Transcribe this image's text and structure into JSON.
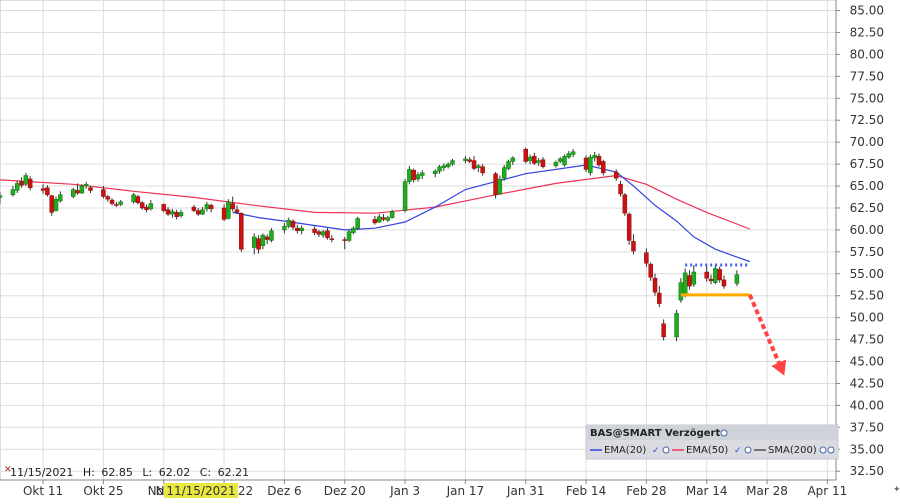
{
  "chart_data": {
    "type": "candlestick",
    "y_ticks": [
      "85.00",
      "82.50",
      "80.00",
      "77.50",
      "75.00",
      "72.50",
      "70.00",
      "67.50",
      "65.00",
      "62.50",
      "60.00",
      "57.50",
      "55.00",
      "52.50",
      "50.00",
      "47.50",
      "45.00",
      "42.50",
      "40.00",
      "37.50",
      "35.00",
      "32.50"
    ],
    "ylim": [
      31.5,
      86.2
    ],
    "x_start": "2021-10-01",
    "x_end": "2022-04-13",
    "x_ticks": [
      {
        "date": "2021-10-11",
        "label": "Okt 11"
      },
      {
        "date": "2021-10-25",
        "label": "Okt 25"
      },
      {
        "date": "2021-11-08",
        "label": "No"
      },
      {
        "date": "2021-11-22",
        "label": "22"
      },
      {
        "date": "2021-12-06",
        "label": "Dez 6"
      },
      {
        "date": "2021-12-20",
        "label": "Dez 20"
      },
      {
        "date": "2022-01-03",
        "label": "Jan 3"
      },
      {
        "date": "2022-01-17",
        "label": "Jan 17"
      },
      {
        "date": "2022-01-31",
        "label": "Jan 31"
      },
      {
        "date": "2022-02-14",
        "label": "Feb 14"
      },
      {
        "date": "2022-02-28",
        "label": "Feb 28"
      },
      {
        "date": "2022-03-14",
        "label": "Mar 14"
      },
      {
        "date": "2022-03-28",
        "label": "Mar 28"
      },
      {
        "date": "2022-04-11",
        "label": "Apr 11"
      }
    ],
    "highlight_date_label": "11/15/2021",
    "info_line": {
      "date": "11/15/2021",
      "high_label": "H:",
      "high": "62.85",
      "low_label": "L:",
      "low": "62.02",
      "close_label": "C:",
      "close": "62.21"
    },
    "colors": {
      "up": "#22aa22",
      "down": "#cc1111",
      "wick": "#333333",
      "ema20": "#3344dd",
      "ema50": "#ee3355",
      "sma200": "#555555",
      "support": "#ffaa00",
      "resistance": "#4466ee",
      "arrow": "#ff4444",
      "highlight": "#e8e840"
    },
    "candles": [
      {
        "d": "2021-10-01",
        "o": 63.7,
        "h": 64.3,
        "l": 63.0,
        "c": 63.9
      },
      {
        "d": "2021-10-04",
        "o": 64.0,
        "h": 65.0,
        "l": 63.8,
        "c": 64.6
      },
      {
        "d": "2021-10-05",
        "o": 64.5,
        "h": 65.6,
        "l": 64.2,
        "c": 65.3
      },
      {
        "d": "2021-10-06",
        "o": 65.5,
        "h": 66.0,
        "l": 64.8,
        "c": 65.1
      },
      {
        "d": "2021-10-07",
        "o": 65.2,
        "h": 66.5,
        "l": 65.0,
        "c": 66.2
      },
      {
        "d": "2021-10-08",
        "o": 65.8,
        "h": 66.1,
        "l": 64.5,
        "c": 64.8
      },
      {
        "d": "2021-10-11",
        "o": 64.7,
        "h": 65.2,
        "l": 64.1,
        "c": 64.5
      },
      {
        "d": "2021-10-12",
        "o": 64.8,
        "h": 65.1,
        "l": 63.8,
        "c": 64.0
      },
      {
        "d": "2021-10-13",
        "o": 63.9,
        "h": 64.0,
        "l": 61.6,
        "c": 62.0
      },
      {
        "d": "2021-10-14",
        "o": 62.2,
        "h": 63.8,
        "l": 62.1,
        "c": 63.5
      },
      {
        "d": "2021-10-15",
        "o": 63.3,
        "h": 64.4,
        "l": 63.1,
        "c": 64.0
      },
      {
        "d": "2021-10-18",
        "o": 63.8,
        "h": 64.8,
        "l": 63.6,
        "c": 64.6
      },
      {
        "d": "2021-10-19",
        "o": 64.5,
        "h": 65.3,
        "l": 64.0,
        "c": 64.2
      },
      {
        "d": "2021-10-20",
        "o": 64.2,
        "h": 65.2,
        "l": 64.1,
        "c": 65.0
      },
      {
        "d": "2021-10-21",
        "o": 65.0,
        "h": 65.5,
        "l": 64.7,
        "c": 65.2
      },
      {
        "d": "2021-10-22",
        "o": 64.8,
        "h": 65.0,
        "l": 64.2,
        "c": 64.5
      },
      {
        "d": "2021-10-25",
        "o": 64.6,
        "h": 65.0,
        "l": 63.6,
        "c": 63.8
      },
      {
        "d": "2021-10-26",
        "o": 63.8,
        "h": 64.0,
        "l": 63.2,
        "c": 63.5
      },
      {
        "d": "2021-10-27",
        "o": 63.4,
        "h": 63.6,
        "l": 62.8,
        "c": 63.0
      },
      {
        "d": "2021-10-28",
        "o": 62.9,
        "h": 63.2,
        "l": 62.6,
        "c": 62.8
      },
      {
        "d": "2021-10-29",
        "o": 62.9,
        "h": 63.4,
        "l": 62.7,
        "c": 63.2
      },
      {
        "d": "2021-11-01",
        "o": 63.2,
        "h": 64.2,
        "l": 63.0,
        "c": 64.0
      },
      {
        "d": "2021-11-02",
        "o": 63.8,
        "h": 64.0,
        "l": 62.9,
        "c": 63.1
      },
      {
        "d": "2021-11-03",
        "o": 63.1,
        "h": 63.3,
        "l": 62.3,
        "c": 62.5
      },
      {
        "d": "2021-11-04",
        "o": 62.6,
        "h": 62.9,
        "l": 62.0,
        "c": 62.3
      },
      {
        "d": "2021-11-05",
        "o": 62.4,
        "h": 63.4,
        "l": 62.2,
        "c": 63.0
      },
      {
        "d": "2021-11-08",
        "o": 62.9,
        "h": 63.0,
        "l": 62.0,
        "c": 62.2
      },
      {
        "d": "2021-11-09",
        "o": 62.3,
        "h": 62.6,
        "l": 61.6,
        "c": 61.8
      },
      {
        "d": "2021-11-10",
        "o": 61.8,
        "h": 62.4,
        "l": 61.4,
        "c": 62.1
      },
      {
        "d": "2021-11-11",
        "o": 62.0,
        "h": 62.3,
        "l": 61.2,
        "c": 61.5
      },
      {
        "d": "2021-11-12",
        "o": 61.6,
        "h": 62.3,
        "l": 61.4,
        "c": 62.0
      },
      {
        "d": "2021-11-15",
        "o": 62.6,
        "h": 62.85,
        "l": 62.02,
        "c": 62.21
      },
      {
        "d": "2021-11-16",
        "o": 62.2,
        "h": 62.5,
        "l": 61.6,
        "c": 61.8
      },
      {
        "d": "2021-11-17",
        "o": 61.8,
        "h": 62.6,
        "l": 61.7,
        "c": 62.3
      },
      {
        "d": "2021-11-18",
        "o": 62.4,
        "h": 63.2,
        "l": 62.1,
        "c": 62.9
      },
      {
        "d": "2021-11-19",
        "o": 62.8,
        "h": 63.0,
        "l": 62.0,
        "c": 62.4
      },
      {
        "d": "2021-11-22",
        "o": 62.5,
        "h": 62.9,
        "l": 61.0,
        "c": 61.2
      },
      {
        "d": "2021-11-23",
        "o": 61.3,
        "h": 63.5,
        "l": 61.2,
        "c": 63.2
      },
      {
        "d": "2021-11-24",
        "o": 63.0,
        "h": 63.8,
        "l": 62.1,
        "c": 62.4
      },
      {
        "d": "2021-11-25",
        "o": 62.3,
        "h": 62.8,
        "l": 61.8,
        "c": 62.0
      },
      {
        "d": "2021-11-26",
        "o": 61.9,
        "h": 62.0,
        "l": 57.5,
        "c": 57.8
      },
      {
        "d": "2021-11-29",
        "o": 58.0,
        "h": 59.6,
        "l": 57.2,
        "c": 59.2
      },
      {
        "d": "2021-11-30",
        "o": 59.0,
        "h": 59.4,
        "l": 57.3,
        "c": 57.8
      },
      {
        "d": "2021-12-01",
        "o": 58.2,
        "h": 59.6,
        "l": 57.8,
        "c": 59.4
      },
      {
        "d": "2021-12-02",
        "o": 59.2,
        "h": 59.5,
        "l": 58.4,
        "c": 58.9
      },
      {
        "d": "2021-12-03",
        "o": 58.8,
        "h": 60.2,
        "l": 58.6,
        "c": 59.9
      },
      {
        "d": "2021-12-06",
        "o": 60.0,
        "h": 60.8,
        "l": 59.6,
        "c": 60.4
      },
      {
        "d": "2021-12-07",
        "o": 60.4,
        "h": 61.4,
        "l": 60.2,
        "c": 61.1
      },
      {
        "d": "2021-12-08",
        "o": 61.0,
        "h": 61.2,
        "l": 60.0,
        "c": 60.3
      },
      {
        "d": "2021-12-09",
        "o": 60.2,
        "h": 60.6,
        "l": 59.6,
        "c": 59.9
      },
      {
        "d": "2021-12-10",
        "o": 59.9,
        "h": 60.5,
        "l": 59.5,
        "c": 60.2
      },
      {
        "d": "2021-12-13",
        "o": 60.1,
        "h": 60.4,
        "l": 59.4,
        "c": 59.7
      },
      {
        "d": "2021-12-14",
        "o": 59.8,
        "h": 60.0,
        "l": 59.2,
        "c": 59.5
      },
      {
        "d": "2021-12-15",
        "o": 59.4,
        "h": 60.0,
        "l": 59.1,
        "c": 59.8
      },
      {
        "d": "2021-12-16",
        "o": 59.9,
        "h": 60.2,
        "l": 58.9,
        "c": 59.1
      },
      {
        "d": "2021-12-17",
        "o": 59.0,
        "h": 59.4,
        "l": 58.6,
        "c": 58.9
      },
      {
        "d": "2021-12-20",
        "o": 58.9,
        "h": 59.2,
        "l": 57.8,
        "c": 58.8
      },
      {
        "d": "2021-12-21",
        "o": 58.8,
        "h": 60.0,
        "l": 58.6,
        "c": 59.8
      },
      {
        "d": "2021-12-22",
        "o": 59.7,
        "h": 60.4,
        "l": 59.5,
        "c": 60.2
      },
      {
        "d": "2021-12-23",
        "o": 60.2,
        "h": 61.5,
        "l": 60.0,
        "c": 61.3
      },
      {
        "d": "2021-12-27",
        "o": 61.2,
        "h": 61.6,
        "l": 60.6,
        "c": 60.8
      },
      {
        "d": "2021-12-28",
        "o": 60.9,
        "h": 61.8,
        "l": 60.8,
        "c": 61.5
      },
      {
        "d": "2021-12-29",
        "o": 61.4,
        "h": 61.8,
        "l": 61.0,
        "c": 61.2
      },
      {
        "d": "2021-12-30",
        "o": 61.1,
        "h": 61.6,
        "l": 60.9,
        "c": 61.4
      },
      {
        "d": "2021-12-31",
        "o": 61.4,
        "h": 62.3,
        "l": 61.3,
        "c": 62.1
      },
      {
        "d": "2022-01-03",
        "o": 62.2,
        "h": 65.8,
        "l": 62.0,
        "c": 65.5
      },
      {
        "d": "2022-01-04",
        "o": 65.5,
        "h": 67.3,
        "l": 65.2,
        "c": 66.9
      },
      {
        "d": "2022-01-05",
        "o": 66.8,
        "h": 67.0,
        "l": 65.4,
        "c": 65.7
      },
      {
        "d": "2022-01-06",
        "o": 65.8,
        "h": 66.6,
        "l": 65.5,
        "c": 66.3
      },
      {
        "d": "2022-01-07",
        "o": 66.2,
        "h": 66.8,
        "l": 65.8,
        "c": 66.5
      },
      {
        "d": "2022-01-10",
        "o": 66.4,
        "h": 66.9,
        "l": 66.0,
        "c": 66.7
      },
      {
        "d": "2022-01-11",
        "o": 66.7,
        "h": 67.4,
        "l": 66.4,
        "c": 67.2
      },
      {
        "d": "2022-01-12",
        "o": 67.1,
        "h": 67.6,
        "l": 66.7,
        "c": 67.3
      },
      {
        "d": "2022-01-13",
        "o": 67.2,
        "h": 67.7,
        "l": 67.0,
        "c": 67.5
      },
      {
        "d": "2022-01-14",
        "o": 67.5,
        "h": 68.1,
        "l": 67.3,
        "c": 67.9
      },
      {
        "d": "2022-01-17",
        "o": 67.9,
        "h": 68.4,
        "l": 67.6,
        "c": 68.1
      },
      {
        "d": "2022-01-18",
        "o": 68.0,
        "h": 68.3,
        "l": 67.6,
        "c": 67.8
      },
      {
        "d": "2022-01-19",
        "o": 67.9,
        "h": 68.4,
        "l": 66.8,
        "c": 67.0
      },
      {
        "d": "2022-01-20",
        "o": 67.1,
        "h": 67.5,
        "l": 66.6,
        "c": 67.3
      },
      {
        "d": "2022-01-21",
        "o": 67.2,
        "h": 67.5,
        "l": 66.2,
        "c": 66.5
      },
      {
        "d": "2022-01-24",
        "o": 66.4,
        "h": 66.6,
        "l": 63.6,
        "c": 64.0
      },
      {
        "d": "2022-01-25",
        "o": 64.1,
        "h": 66.2,
        "l": 64.0,
        "c": 65.8
      },
      {
        "d": "2022-01-26",
        "o": 65.9,
        "h": 67.4,
        "l": 65.6,
        "c": 67.1
      },
      {
        "d": "2022-01-27",
        "o": 67.0,
        "h": 68.0,
        "l": 66.8,
        "c": 67.8
      },
      {
        "d": "2022-01-28",
        "o": 67.8,
        "h": 68.4,
        "l": 67.4,
        "c": 68.2
      },
      {
        "d": "2022-01-31",
        "o": 69.2,
        "h": 69.4,
        "l": 67.6,
        "c": 67.8
      },
      {
        "d": "2022-02-01",
        "o": 67.9,
        "h": 68.6,
        "l": 67.5,
        "c": 68.3
      },
      {
        "d": "2022-02-02",
        "o": 68.4,
        "h": 68.8,
        "l": 67.4,
        "c": 67.6
      },
      {
        "d": "2022-02-03",
        "o": 67.7,
        "h": 68.2,
        "l": 67.3,
        "c": 67.9
      },
      {
        "d": "2022-02-04",
        "o": 68.0,
        "h": 68.3,
        "l": 67.0,
        "c": 67.2
      },
      {
        "d": "2022-02-07",
        "o": 67.3,
        "h": 67.9,
        "l": 67.1,
        "c": 67.7
      },
      {
        "d": "2022-02-08",
        "o": 67.8,
        "h": 68.3,
        "l": 67.6,
        "c": 68.1
      },
      {
        "d": "2022-02-09",
        "o": 67.4,
        "h": 68.6,
        "l": 67.2,
        "c": 68.4
      },
      {
        "d": "2022-02-10",
        "o": 68.3,
        "h": 69.0,
        "l": 68.1,
        "c": 68.7
      },
      {
        "d": "2022-02-11",
        "o": 68.6,
        "h": 69.2,
        "l": 68.3,
        "c": 68.9
      },
      {
        "d": "2022-02-14",
        "o": 68.2,
        "h": 68.5,
        "l": 66.6,
        "c": 66.9
      },
      {
        "d": "2022-02-15",
        "o": 66.5,
        "h": 68.6,
        "l": 66.2,
        "c": 68.3
      },
      {
        "d": "2022-02-16",
        "o": 68.2,
        "h": 68.9,
        "l": 67.8,
        "c": 68.5
      },
      {
        "d": "2022-02-17",
        "o": 68.4,
        "h": 68.7,
        "l": 67.2,
        "c": 67.4
      },
      {
        "d": "2022-02-18",
        "o": 67.8,
        "h": 68.0,
        "l": 66.2,
        "c": 66.5
      },
      {
        "d": "2022-02-21",
        "o": 66.6,
        "h": 66.9,
        "l": 65.6,
        "c": 65.9
      },
      {
        "d": "2022-02-22",
        "o": 65.2,
        "h": 65.6,
        "l": 63.8,
        "c": 64.1
      },
      {
        "d": "2022-02-23",
        "o": 64.0,
        "h": 64.2,
        "l": 61.6,
        "c": 61.9
      },
      {
        "d": "2022-02-24",
        "o": 61.8,
        "h": 62.0,
        "l": 58.3,
        "c": 58.8
      },
      {
        "d": "2022-02-25",
        "o": 58.7,
        "h": 59.5,
        "l": 57.2,
        "c": 57.6
      },
      {
        "d": "2022-02-28",
        "o": 57.4,
        "h": 57.9,
        "l": 55.8,
        "c": 56.2
      },
      {
        "d": "2022-03-01",
        "o": 56.1,
        "h": 56.3,
        "l": 54.2,
        "c": 54.6
      },
      {
        "d": "2022-03-02",
        "o": 54.5,
        "h": 55.0,
        "l": 52.5,
        "c": 52.9
      },
      {
        "d": "2022-03-03",
        "o": 52.8,
        "h": 53.6,
        "l": 51.2,
        "c": 51.6
      },
      {
        "d": "2022-03-04",
        "o": 49.3,
        "h": 49.8,
        "l": 47.4,
        "c": 47.8
      },
      {
        "d": "2022-03-07",
        "o": 47.8,
        "h": 50.9,
        "l": 47.3,
        "c": 50.5
      },
      {
        "d": "2022-03-08",
        "o": 52.0,
        "h": 54.5,
        "l": 51.7,
        "c": 54.0
      },
      {
        "d": "2022-03-09",
        "o": 52.6,
        "h": 55.6,
        "l": 52.3,
        "c": 55.1
      },
      {
        "d": "2022-03-10",
        "o": 54.8,
        "h": 55.4,
        "l": 53.2,
        "c": 53.6
      },
      {
        "d": "2022-03-11",
        "o": 53.8,
        "h": 56.0,
        "l": 53.5,
        "c": 55.2
      },
      {
        "d": "2022-03-14",
        "o": 55.2,
        "h": 55.9,
        "l": 54.1,
        "c": 54.5
      },
      {
        "d": "2022-03-15",
        "o": 54.4,
        "h": 54.9,
        "l": 53.8,
        "c": 54.2
      },
      {
        "d": "2022-03-16",
        "o": 54.0,
        "h": 56.0,
        "l": 53.8,
        "c": 55.6
      },
      {
        "d": "2022-03-17",
        "o": 55.5,
        "h": 55.8,
        "l": 54.0,
        "c": 54.3
      },
      {
        "d": "2022-03-18",
        "o": 54.3,
        "h": 54.8,
        "l": 53.3,
        "c": 53.6
      },
      {
        "d": "2022-03-21",
        "o": 53.9,
        "h": 55.4,
        "l": 53.6,
        "c": 54.9
      }
    ],
    "ema20": [
      {
        "d": "2021-11-24",
        "v": 62.0
      },
      {
        "d": "2021-11-30",
        "v": 61.4
      },
      {
        "d": "2021-12-06",
        "v": 61.0
      },
      {
        "d": "2021-12-13",
        "v": 60.5
      },
      {
        "d": "2021-12-20",
        "v": 60.0
      },
      {
        "d": "2021-12-27",
        "v": 60.2
      },
      {
        "d": "2022-01-03",
        "v": 60.9
      },
      {
        "d": "2022-01-10",
        "v": 62.6
      },
      {
        "d": "2022-01-17",
        "v": 64.6
      },
      {
        "d": "2022-01-24",
        "v": 65.5
      },
      {
        "d": "2022-01-31",
        "v": 66.4
      },
      {
        "d": "2022-02-07",
        "v": 66.9
      },
      {
        "d": "2022-02-14",
        "v": 67.4
      },
      {
        "d": "2022-02-21",
        "v": 66.6
      },
      {
        "d": "2022-02-25",
        "v": 65.0
      },
      {
        "d": "2022-03-02",
        "v": 62.8
      },
      {
        "d": "2022-03-07",
        "v": 61.0
      },
      {
        "d": "2022-03-11",
        "v": 59.2
      },
      {
        "d": "2022-03-16",
        "v": 57.8
      },
      {
        "d": "2022-03-21",
        "v": 56.9
      },
      {
        "d": "2022-03-24",
        "v": 56.4
      }
    ],
    "ema50": [
      {
        "d": "2021-10-01",
        "v": 65.7
      },
      {
        "d": "2021-10-18",
        "v": 65.2
      },
      {
        "d": "2021-11-01",
        "v": 64.4
      },
      {
        "d": "2021-11-15",
        "v": 63.7
      },
      {
        "d": "2021-11-29",
        "v": 62.8
      },
      {
        "d": "2021-12-13",
        "v": 62.0
      },
      {
        "d": "2021-12-27",
        "v": 61.9
      },
      {
        "d": "2022-01-10",
        "v": 62.6
      },
      {
        "d": "2022-01-24",
        "v": 64.0
      },
      {
        "d": "2022-02-07",
        "v": 65.3
      },
      {
        "d": "2022-02-21",
        "v": 66.2
      },
      {
        "d": "2022-02-28",
        "v": 65.2
      },
      {
        "d": "2022-03-07",
        "v": 63.5
      },
      {
        "d": "2022-03-14",
        "v": 62.0
      },
      {
        "d": "2022-03-24",
        "v": 60.1
      }
    ],
    "support": {
      "from": "2022-03-08",
      "to": "2022-03-24",
      "y": 52.6
    },
    "resistance": {
      "from": "2022-03-09",
      "to": "2022-03-24",
      "y": 56.0
    },
    "arrow": {
      "from_date": "2022-03-24",
      "from_y": 52.6,
      "to_date": "2022-04-01",
      "to_y": 43.4
    },
    "legend": {
      "title": "BAS@SMART Verzögert",
      "items": [
        {
          "key": "ema20",
          "label": "EMA(20)"
        },
        {
          "key": "ema50",
          "label": "EMA(50)"
        },
        {
          "key": "sma200",
          "label": "SMA(200)"
        }
      ]
    }
  }
}
